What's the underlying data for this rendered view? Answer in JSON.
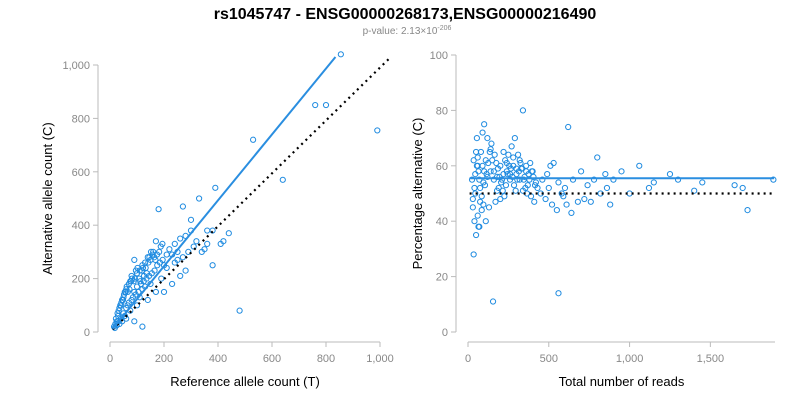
{
  "header": {
    "title": "rs1045747 - ENSG00000268173,ENSG00000216490",
    "pvalue_prefix": "p-value: 2.13×10",
    "pvalue_exponent": "-206"
  },
  "colors": {
    "points": "#1f8be0",
    "fit_line": "#2a8ee0",
    "reference_line": "#000000"
  },
  "chart_data": [
    {
      "type": "scatter",
      "xlabel": "Reference allele count (T)",
      "ylabel": "Alternative allele count (C)",
      "xlim": [
        0,
        1000
      ],
      "ylim": [
        0,
        1000
      ],
      "x_ticks": [
        0,
        200,
        400,
        600,
        800,
        1000
      ],
      "x_tick_labels": [
        "0",
        "200",
        "400",
        "600",
        "800",
        "1,000"
      ],
      "y_ticks": [
        0,
        200,
        400,
        600,
        800,
        1000
      ],
      "y_tick_labels": [
        "0",
        "200",
        "400",
        "600",
        "800",
        "1,000"
      ],
      "fit_line": {
        "from": [
          10,
          12
        ],
        "to": [
          835,
          1030
        ]
      },
      "reference_line": {
        "from": [
          10,
          10
        ],
        "to": [
          1040,
          1030
        ]
      },
      "points": [
        [
          855,
          1040
        ],
        [
          800,
          850
        ],
        [
          760,
          850
        ],
        [
          990,
          755
        ],
        [
          530,
          720
        ],
        [
          640,
          570
        ],
        [
          480,
          80
        ],
        [
          420,
          340
        ],
        [
          380,
          380
        ],
        [
          360,
          380
        ],
        [
          390,
          540
        ],
        [
          270,
          470
        ],
        [
          300,
          420
        ],
        [
          350,
          310
        ],
        [
          320,
          340
        ],
        [
          330,
          500
        ],
        [
          290,
          300
        ],
        [
          250,
          300
        ],
        [
          230,
          290
        ],
        [
          200,
          250
        ],
        [
          180,
          460
        ],
        [
          170,
          340
        ],
        [
          160,
          300
        ],
        [
          150,
          270
        ],
        [
          140,
          280
        ],
        [
          130,
          260
        ],
        [
          120,
          250
        ],
        [
          110,
          230
        ],
        [
          100,
          220
        ],
        [
          90,
          270
        ],
        [
          80,
          210
        ],
        [
          75,
          190
        ],
        [
          70,
          180
        ],
        [
          60,
          160
        ],
        [
          55,
          150
        ],
        [
          50,
          130
        ],
        [
          45,
          120
        ],
        [
          40,
          100
        ],
        [
          35,
          90
        ],
        [
          30,
          60
        ],
        [
          25,
          40
        ],
        [
          20,
          30
        ],
        [
          15,
          20
        ],
        [
          18,
          15
        ],
        [
          22,
          50
        ],
        [
          28,
          70
        ],
        [
          32,
          80
        ],
        [
          38,
          100
        ],
        [
          42,
          110
        ],
        [
          48,
          120
        ],
        [
          52,
          140
        ],
        [
          58,
          150
        ],
        [
          62,
          170
        ],
        [
          66,
          150
        ],
        [
          72,
          160
        ],
        [
          78,
          190
        ],
        [
          82,
          200
        ],
        [
          88,
          190
        ],
        [
          92,
          200
        ],
        [
          96,
          230
        ],
        [
          102,
          240
        ],
        [
          108,
          200
        ],
        [
          112,
          190
        ],
        [
          118,
          230
        ],
        [
          122,
          240
        ],
        [
          126,
          210
        ],
        [
          132,
          240
        ],
        [
          136,
          220
        ],
        [
          142,
          260
        ],
        [
          146,
          280
        ],
        [
          152,
          300
        ],
        [
          158,
          290
        ],
        [
          164,
          280
        ],
        [
          168,
          270
        ],
        [
          174,
          290
        ],
        [
          182,
          300
        ],
        [
          188,
          320
        ],
        [
          194,
          330
        ],
        [
          210,
          290
        ],
        [
          220,
          310
        ],
        [
          240,
          330
        ],
        [
          260,
          350
        ],
        [
          280,
          360
        ],
        [
          300,
          380
        ],
        [
          120,
          160
        ],
        [
          130,
          170
        ],
        [
          100,
          170
        ],
        [
          90,
          150
        ],
        [
          110,
          130
        ],
        [
          80,
          120
        ],
        [
          70,
          110
        ],
        [
          60,
          90
        ],
        [
          50,
          70
        ],
        [
          40,
          50
        ],
        [
          35,
          30
        ],
        [
          30,
          40
        ],
        [
          65,
          100
        ],
        [
          85,
          130
        ],
        [
          95,
          140
        ],
        [
          105,
          150
        ],
        [
          115,
          180
        ],
        [
          125,
          190
        ],
        [
          135,
          200
        ],
        [
          145,
          210
        ],
        [
          155,
          220
        ],
        [
          165,
          230
        ],
        [
          175,
          250
        ],
        [
          185,
          260
        ],
        [
          195,
          270
        ],
        [
          60,
          50
        ],
        [
          90,
          40
        ],
        [
          120,
          20
        ],
        [
          230,
          180
        ],
        [
          200,
          150
        ],
        [
          260,
          210
        ],
        [
          140,
          120
        ],
        [
          170,
          150
        ],
        [
          75,
          80
        ],
        [
          55,
          60
        ],
        [
          45,
          40
        ],
        [
          25,
          25
        ],
        [
          100,
          100
        ],
        [
          150,
          180
        ],
        [
          190,
          200
        ],
        [
          210,
          240
        ],
        [
          240,
          260
        ],
        [
          270,
          280
        ],
        [
          250,
          270
        ],
        [
          310,
          320
        ],
        [
          340,
          300
        ],
        [
          360,
          330
        ],
        [
          410,
          330
        ],
        [
          440,
          370
        ],
        [
          380,
          250
        ],
        [
          280,
          230
        ]
      ]
    },
    {
      "type": "scatter",
      "xlabel": "Total number of reads",
      "ylabel": "Percentage alternative (C)",
      "xlim": [
        0,
        1900
      ],
      "ylim": [
        0,
        100
      ],
      "x_ticks": [
        0,
        500,
        1000,
        1500
      ],
      "x_tick_labels": [
        "0",
        "500",
        "1,000",
        "1,500"
      ],
      "y_ticks": [
        0,
        20,
        40,
        60,
        80,
        100
      ],
      "y_tick_labels": [
        "0",
        "20",
        "40",
        "60",
        "80",
        "100"
      ],
      "fit_line": {
        "from": [
          10,
          55.5
        ],
        "to": [
          1895,
          55.5
        ]
      },
      "reference_line": {
        "from": [
          10,
          50
        ],
        "to": [
          1895,
          50
        ]
      },
      "points": [
        [
          35,
          28
        ],
        [
          70,
          38
        ],
        [
          40,
          40
        ],
        [
          50,
          35
        ],
        [
          30,
          45
        ],
        [
          45,
          50
        ],
        [
          25,
          55
        ],
        [
          60,
          60
        ],
        [
          80,
          65
        ],
        [
          90,
          72
        ],
        [
          100,
          75
        ],
        [
          120,
          70
        ],
        [
          140,
          66
        ],
        [
          150,
          62
        ],
        [
          160,
          58
        ],
        [
          180,
          56
        ],
        [
          200,
          60
        ],
        [
          220,
          65
        ],
        [
          240,
          58
        ],
        [
          260,
          55
        ],
        [
          280,
          60
        ],
        [
          300,
          57
        ],
        [
          320,
          62
        ],
        [
          340,
          80
        ],
        [
          360,
          60
        ],
        [
          380,
          55
        ],
        [
          400,
          58
        ],
        [
          420,
          54
        ],
        [
          450,
          50
        ],
        [
          480,
          48
        ],
        [
          500,
          52
        ],
        [
          520,
          46
        ],
        [
          550,
          44
        ],
        [
          580,
          50
        ],
        [
          600,
          52
        ],
        [
          620,
          74
        ],
        [
          650,
          55
        ],
        [
          700,
          58
        ],
        [
          720,
          48
        ],
        [
          760,
          47
        ],
        [
          800,
          63
        ],
        [
          820,
          50
        ],
        [
          860,
          52
        ],
        [
          900,
          55
        ],
        [
          950,
          58
        ],
        [
          1000,
          50
        ],
        [
          1060,
          60
        ],
        [
          1120,
          52
        ],
        [
          1150,
          54
        ],
        [
          1250,
          57
        ],
        [
          1300,
          55
        ],
        [
          1400,
          51
        ],
        [
          1450,
          54
        ],
        [
          1650,
          53
        ],
        [
          1700,
          52
        ],
        [
          1730,
          44
        ],
        [
          1890,
          55
        ],
        [
          155,
          11
        ],
        [
          560,
          14
        ],
        [
          110,
          40
        ],
        [
          130,
          45
        ],
        [
          170,
          47
        ],
        [
          190,
          52
        ],
        [
          210,
          55
        ],
        [
          230,
          62
        ],
        [
          250,
          64
        ],
        [
          270,
          67
        ],
        [
          290,
          70
        ],
        [
          310,
          64
        ],
        [
          330,
          59
        ],
        [
          350,
          56
        ],
        [
          370,
          53
        ],
        [
          390,
          49
        ],
        [
          410,
          47
        ],
        [
          430,
          52
        ],
        [
          460,
          55
        ],
        [
          490,
          57
        ],
        [
          510,
          60
        ],
        [
          530,
          61
        ],
        [
          560,
          54
        ],
        [
          590,
          49
        ],
        [
          610,
          46
        ],
        [
          640,
          43
        ],
        [
          680,
          47
        ],
        [
          740,
          53
        ],
        [
          780,
          55
        ],
        [
          850,
          57
        ],
        [
          880,
          46
        ],
        [
          40,
          52
        ],
        [
          45,
          57
        ],
        [
          55,
          60
        ],
        [
          60,
          63
        ],
        [
          65,
          58
        ],
        [
          70,
          55
        ],
        [
          75,
          52
        ],
        [
          85,
          49
        ],
        [
          95,
          46
        ],
        [
          105,
          53
        ],
        [
          115,
          57
        ],
        [
          125,
          61
        ],
        [
          135,
          65
        ],
        [
          145,
          68
        ],
        [
          165,
          64
        ],
        [
          175,
          61
        ],
        [
          185,
          59
        ],
        [
          195,
          56
        ],
        [
          205,
          54
        ],
        [
          215,
          51
        ],
        [
          225,
          49
        ],
        [
          235,
          53
        ],
        [
          245,
          57
        ],
        [
          255,
          60
        ],
        [
          265,
          59
        ],
        [
          275,
          56
        ],
        [
          285,
          53
        ],
        [
          295,
          51
        ],
        [
          305,
          55
        ],
        [
          315,
          58
        ],
        [
          325,
          61
        ],
        [
          335,
          59
        ],
        [
          345,
          55
        ],
        [
          355,
          52
        ],
        [
          365,
          50
        ],
        [
          375,
          57
        ],
        [
          385,
          61
        ],
        [
          395,
          58
        ],
        [
          405,
          56
        ],
        [
          415,
          53
        ],
        [
          50,
          65
        ],
        [
          55,
          70
        ],
        [
          35,
          62
        ],
        [
          30,
          48
        ],
        [
          60,
          42
        ],
        [
          65,
          38
        ],
        [
          90,
          60
        ],
        [
          100,
          58
        ],
        [
          110,
          62
        ],
        [
          120,
          56
        ],
        [
          95,
          54
        ],
        [
          75,
          47
        ],
        [
          85,
          44
        ],
        [
          140,
          58
        ],
        [
          160,
          55
        ],
        [
          180,
          51
        ],
        [
          200,
          48
        ],
        [
          220,
          57
        ],
        [
          240,
          61
        ],
        [
          260,
          57
        ],
        [
          280,
          63
        ],
        [
          300,
          59
        ],
        [
          320,
          55
        ],
        [
          340,
          51
        ],
        [
          360,
          58
        ]
      ]
    }
  ]
}
